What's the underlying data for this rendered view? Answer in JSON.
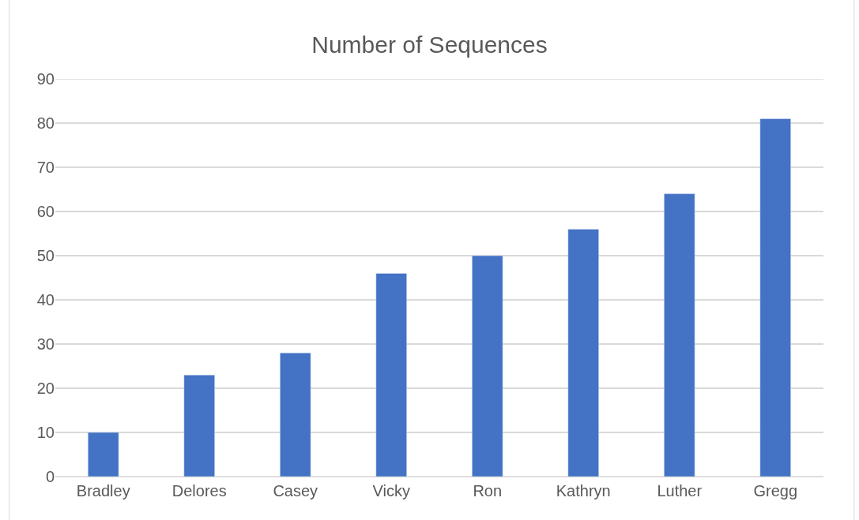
{
  "chart_data": {
    "type": "bar",
    "title": "Number of Sequences",
    "categories": [
      "Bradley",
      "Delores",
      "Casey",
      "Vicky",
      "Ron",
      "Kathryn",
      "Luther",
      "Gregg"
    ],
    "values": [
      10,
      23,
      28,
      46,
      50,
      56,
      64,
      81
    ],
    "color": "#4472c4",
    "ylim": [
      0,
      90
    ],
    "yticks": [
      0,
      10,
      20,
      30,
      40,
      50,
      60,
      70,
      80,
      90
    ],
    "grid": "y"
  }
}
